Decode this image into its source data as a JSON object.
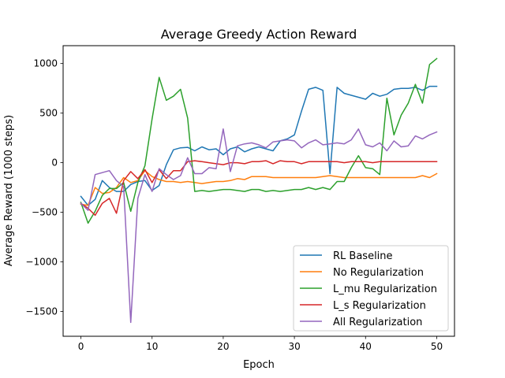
{
  "chart_data": {
    "type": "line",
    "title": "Average Greedy Action Reward",
    "xlabel": "Epoch",
    "ylabel": "Average Reward (1000 steps)",
    "xlim": [
      -2.5,
      52.5
    ],
    "ylim": [
      -1750,
      1180
    ],
    "xticks": [
      0,
      10,
      20,
      30,
      40,
      50
    ],
    "yticks": [
      -1500,
      -1000,
      -500,
      0,
      500,
      1000
    ],
    "grid": false,
    "legend_position": "lower-right",
    "x": [
      0,
      1,
      2,
      3,
      4,
      5,
      6,
      7,
      8,
      9,
      10,
      11,
      12,
      13,
      14,
      15,
      16,
      17,
      18,
      19,
      20,
      21,
      22,
      23,
      24,
      25,
      26,
      27,
      28,
      29,
      30,
      31,
      32,
      33,
      34,
      35,
      36,
      37,
      38,
      39,
      40,
      41,
      42,
      43,
      44,
      45,
      46,
      47,
      48,
      49,
      50
    ],
    "series": [
      {
        "name": "RL Baseline",
        "color": "#1f77b4",
        "values": [
          -340,
          -430,
          -370,
          -180,
          -250,
          -290,
          -290,
          -220,
          -190,
          -180,
          -280,
          -230,
          -20,
          130,
          150,
          155,
          120,
          160,
          130,
          140,
          80,
          140,
          160,
          110,
          140,
          160,
          140,
          120,
          220,
          240,
          280,
          520,
          740,
          760,
          730,
          -110,
          760,
          700,
          680,
          660,
          640,
          700,
          670,
          690,
          740,
          750,
          750,
          760,
          730,
          770,
          770
        ]
      },
      {
        "name": "No Regularization",
        "color": "#ff7f0e",
        "values": [
          -420,
          -430,
          -250,
          -310,
          -300,
          -250,
          -150,
          -200,
          -180,
          -80,
          -140,
          -170,
          -190,
          -190,
          -200,
          -190,
          -200,
          -210,
          -200,
          -190,
          -190,
          -180,
          -160,
          -170,
          -140,
          -140,
          -140,
          -150,
          -150,
          -150,
          -150,
          -150,
          -150,
          -150,
          -140,
          -130,
          -140,
          -150,
          -150,
          -150,
          -150,
          -150,
          -150,
          -150,
          -150,
          -150,
          -150,
          -150,
          -130,
          -150,
          -110
        ]
      },
      {
        "name": "L_mu Regularization",
        "color": "#2ca02c",
        "values": [
          -400,
          -610,
          -490,
          -330,
          -260,
          -260,
          -200,
          -490,
          -200,
          -30,
          440,
          860,
          630,
          670,
          740,
          450,
          -290,
          -280,
          -290,
          -280,
          -270,
          -270,
          -280,
          -290,
          -270,
          -270,
          -290,
          -280,
          -290,
          -280,
          -270,
          -270,
          -250,
          -270,
          -250,
          -270,
          -190,
          -190,
          -50,
          70,
          -50,
          -60,
          -120,
          650,
          280,
          480,
          600,
          790,
          600,
          990,
          1050
        ]
      },
      {
        "name": "L_s Regularization",
        "color": "#d62728",
        "values": [
          -410,
          -460,
          -530,
          -410,
          -360,
          -510,
          -180,
          -90,
          -160,
          -70,
          -200,
          -70,
          -160,
          -80,
          -80,
          10,
          20,
          10,
          0,
          -10,
          -20,
          0,
          0,
          -10,
          10,
          10,
          20,
          -10,
          20,
          10,
          10,
          -10,
          10,
          10,
          10,
          10,
          10,
          0,
          10,
          10,
          10,
          0,
          10,
          10,
          10,
          10,
          10,
          10,
          10,
          10,
          10
        ]
      },
      {
        "name": "All Regularization",
        "color": "#9467bd",
        "values": [
          -410,
          -480,
          -120,
          -100,
          -80,
          -180,
          -240,
          -1610,
          -360,
          -120,
          -290,
          -60,
          -120,
          -170,
          -130,
          50,
          -110,
          -110,
          -50,
          -60,
          340,
          -90,
          170,
          190,
          200,
          180,
          150,
          210,
          220,
          230,
          220,
          150,
          200,
          230,
          180,
          190,
          200,
          190,
          230,
          340,
          180,
          160,
          200,
          120,
          220,
          160,
          170,
          270,
          240,
          280,
          310
        ]
      }
    ]
  }
}
